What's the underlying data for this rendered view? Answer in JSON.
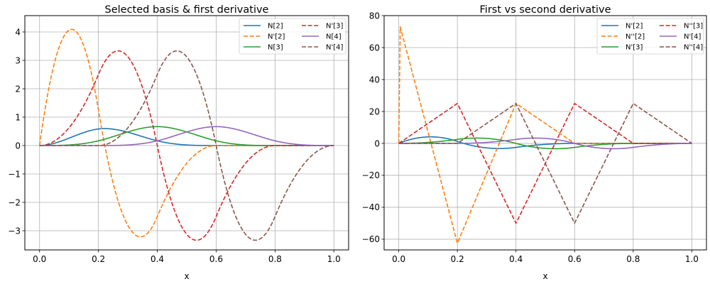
{
  "chart_data": [
    {
      "type": "line",
      "title": "Selected basis & first derivative",
      "xlabel": "x",
      "ylabel": "",
      "xlim": [
        -0.05,
        1.05
      ],
      "ylim": [
        -3.675,
        4.575
      ],
      "xticks": [
        0.0,
        0.2,
        0.4,
        0.6,
        0.8,
        1.0
      ],
      "xtick_labels": [
        "0.0",
        "0.2",
        "0.4",
        "0.6",
        "0.8",
        "1.0"
      ],
      "yticks": [
        -3,
        -2,
        -1,
        0,
        1,
        2,
        3,
        4
      ],
      "ytick_labels": [
        "−3",
        "−2",
        "−1",
        "0",
        "1",
        "2",
        "3",
        "4"
      ],
      "grid": true,
      "legend": {
        "placement": "top-right",
        "columns": 2
      },
      "spline": {
        "degree": 3,
        "knots": [
          0,
          0,
          0,
          0,
          0.2,
          0.4,
          0.6,
          0.8,
          1,
          1,
          1,
          1
        ]
      },
      "series": [
        {
          "name": "N[2]",
          "basis": 2,
          "derivative": 0,
          "style": "solid",
          "color": "#1f77b4",
          "peak": {
            "x": 0.22,
            "y": 0.6
          }
        },
        {
          "name": "N'[2]",
          "basis": 2,
          "derivative": 1,
          "style": "dashed",
          "color": "#ff7f0e",
          "peak": {
            "x": 0.11,
            "y": 4.1
          },
          "min": {
            "x": 0.34,
            "y": -3.2
          }
        },
        {
          "name": "N[3]",
          "basis": 3,
          "derivative": 0,
          "style": "solid",
          "color": "#2ca02c",
          "peak": {
            "x": 0.4,
            "y": 0.67
          }
        },
        {
          "name": "N'[3]",
          "basis": 3,
          "derivative": 1,
          "style": "dashed",
          "color": "#d62728",
          "peak": {
            "x": 0.27,
            "y": 3.33
          },
          "min": {
            "x": 0.53,
            "y": -3.33
          }
        },
        {
          "name": "N[4]",
          "basis": 4,
          "derivative": 0,
          "style": "solid",
          "color": "#9467bd",
          "peak": {
            "x": 0.6,
            "y": 0.67
          }
        },
        {
          "name": "N'[4]",
          "basis": 4,
          "derivative": 1,
          "style": "dashed",
          "color": "#8c564b",
          "peak": {
            "x": 0.47,
            "y": 3.33
          },
          "min": {
            "x": 0.73,
            "y": -3.33
          }
        }
      ]
    },
    {
      "type": "line",
      "title": "First vs second derivative",
      "xlabel": "x",
      "ylabel": "",
      "xlim": [
        -0.05,
        1.05
      ],
      "ylim": [
        -66.7,
        80
      ],
      "xticks": [
        0.0,
        0.2,
        0.4,
        0.6,
        0.8,
        1.0
      ],
      "xtick_labels": [
        "0.0",
        "0.2",
        "0.4",
        "0.6",
        "0.8",
        "1.0"
      ],
      "yticks": [
        -60,
        -40,
        -20,
        0,
        20,
        40,
        60,
        80
      ],
      "ytick_labels": [
        "−60",
        "−40",
        "−20",
        "0",
        "20",
        "40",
        "60",
        "80"
      ],
      "grid": true,
      "legend": {
        "placement": "top-right",
        "columns": 2
      },
      "spline": {
        "degree": 3,
        "knots": [
          0,
          0,
          0,
          0,
          0.2,
          0.4,
          0.6,
          0.8,
          1,
          1,
          1,
          1
        ]
      },
      "series": [
        {
          "name": "N'[2]",
          "basis": 2,
          "derivative": 1,
          "style": "solid",
          "color": "#1f77b4"
        },
        {
          "name": "N''[2]",
          "basis": 2,
          "derivative": 2,
          "style": "dashed",
          "color": "#ff7f0e",
          "points": [
            [
              0,
              0
            ],
            [
              0.005,
              73
            ],
            [
              0.2,
              -62.5
            ],
            [
              0.4,
              25
            ],
            [
              0.6,
              0
            ],
            [
              1,
              0
            ]
          ]
        },
        {
          "name": "N'[3]",
          "basis": 3,
          "derivative": 1,
          "style": "solid",
          "color": "#2ca02c"
        },
        {
          "name": "N''[3]",
          "basis": 3,
          "derivative": 2,
          "style": "dashed",
          "color": "#d62728",
          "points": [
            [
              0,
              0
            ],
            [
              0.2,
              25
            ],
            [
              0.4,
              -50
            ],
            [
              0.6,
              25
            ],
            [
              0.8,
              0
            ],
            [
              1,
              0
            ]
          ]
        },
        {
          "name": "N'[4]",
          "basis": 4,
          "derivative": 1,
          "style": "solid",
          "color": "#9467bd"
        },
        {
          "name": "N''[4]",
          "basis": 4,
          "derivative": 2,
          "style": "dashed",
          "color": "#8c564b",
          "points": [
            [
              0,
              0
            ],
            [
              0.2,
              0
            ],
            [
              0.4,
              25
            ],
            [
              0.6,
              -50
            ],
            [
              0.8,
              25
            ],
            [
              1,
              0
            ]
          ]
        }
      ]
    }
  ]
}
